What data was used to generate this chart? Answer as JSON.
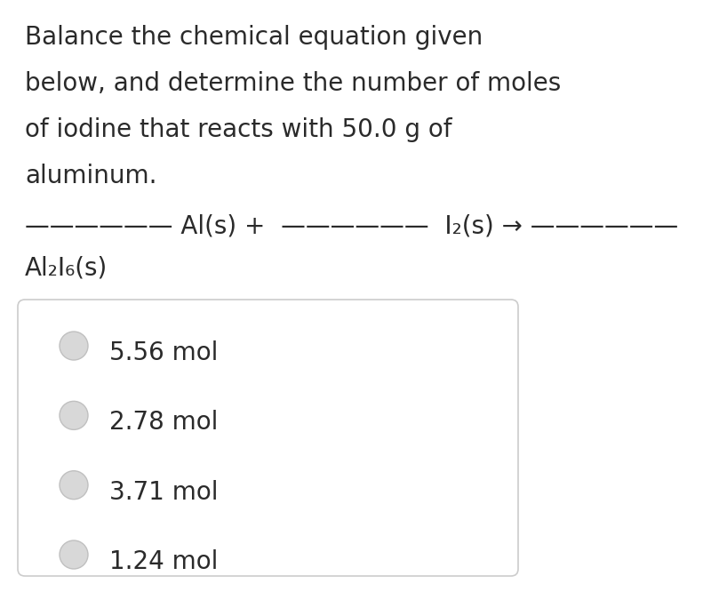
{
  "background_color": "#ffffff",
  "text_color": "#2a2a2a",
  "question_lines": [
    "Balance the chemical equation given",
    "below, and determine the number of moles",
    "of iodine that reacts with 50.0 g of",
    "aluminum."
  ],
  "options": [
    "5.56 mol",
    "2.78 mol",
    "3.71 mol",
    "1.24 mol"
  ],
  "question_fontsize": 20,
  "option_fontsize": 20,
  "box_facecolor": "#ffffff",
  "box_edge_color": "#cccccc",
  "radio_fill_color": "#d8d8d8",
  "radio_edge_color": "#c0c0c0"
}
